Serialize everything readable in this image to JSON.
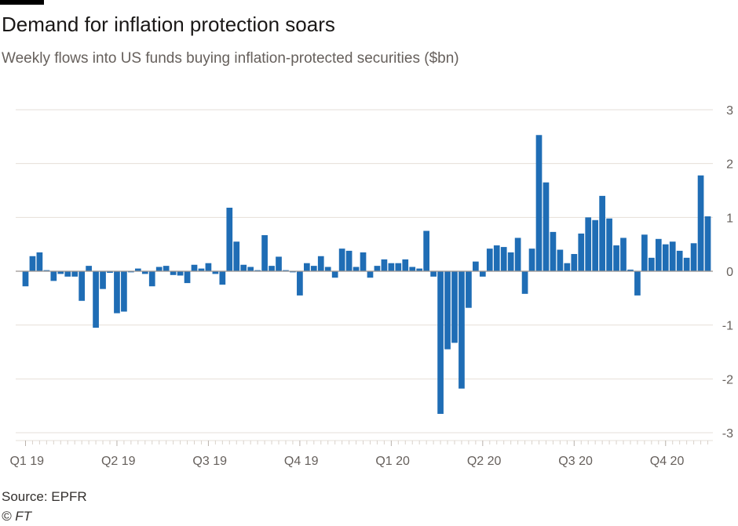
{
  "header": {
    "title": "Demand for inflation protection soars",
    "subtitle": "Weekly flows into US funds buying inflation-protected securities ($bn)"
  },
  "footer": {
    "source": "Source: EPFR",
    "copyright": "© FT"
  },
  "colors": {
    "bar": "#1f6db5",
    "grid": "#e6dfd8",
    "zero_line": "#9b9590",
    "axis_text": "#66605c"
  },
  "chart_data": {
    "type": "bar",
    "title": "Demand for inflation protection soars",
    "subtitle": "Weekly flows into US funds buying inflation-protected securities ($bn)",
    "xlabel": "",
    "ylabel": "",
    "ylim": [
      -3,
      3
    ],
    "yticks": [
      3,
      2,
      1,
      0,
      -1,
      -2,
      -3
    ],
    "y_axis_side": "right",
    "grid": "horizontal",
    "legend": "none",
    "quarter_labels": [
      "Q1 19",
      "Q2 19",
      "Q3 19",
      "Q4 19",
      "Q1 20",
      "Q2 20",
      "Q3 20",
      "Q4 20"
    ],
    "quarter_start_index": [
      0,
      13,
      26,
      39,
      52,
      65,
      78,
      91
    ],
    "values": [
      -0.28,
      0.28,
      0.35,
      0.02,
      -0.18,
      -0.05,
      -0.1,
      -0.1,
      -0.55,
      0.1,
      -1.05,
      -0.33,
      -0.03,
      -0.78,
      -0.75,
      -0.02,
      0.05,
      -0.05,
      -0.28,
      0.08,
      0.1,
      -0.07,
      -0.08,
      -0.22,
      0.12,
      0.05,
      0.15,
      -0.05,
      -0.25,
      1.18,
      0.55,
      0.12,
      0.08,
      0.02,
      0.67,
      0.1,
      0.27,
      0.02,
      -0.02,
      -0.45,
      0.15,
      0.1,
      0.28,
      0.08,
      -0.12,
      0.42,
      0.38,
      0.08,
      0.35,
      -0.12,
      0.1,
      0.22,
      0.15,
      0.15,
      0.22,
      0.08,
      0.05,
      0.75,
      -0.1,
      -2.65,
      -1.45,
      -1.33,
      -2.18,
      -0.68,
      0.18,
      -0.1,
      0.42,
      0.48,
      0.45,
      0.35,
      0.62,
      -0.42,
      0.42,
      2.53,
      1.65,
      0.73,
      0.4,
      0.15,
      0.32,
      0.7,
      1.0,
      0.95,
      1.4,
      0.98,
      0.48,
      0.62,
      0.03,
      -0.45,
      0.68,
      0.25,
      0.6,
      0.5,
      0.55,
      0.38,
      0.25,
      0.52,
      1.78,
      1.02
    ]
  }
}
